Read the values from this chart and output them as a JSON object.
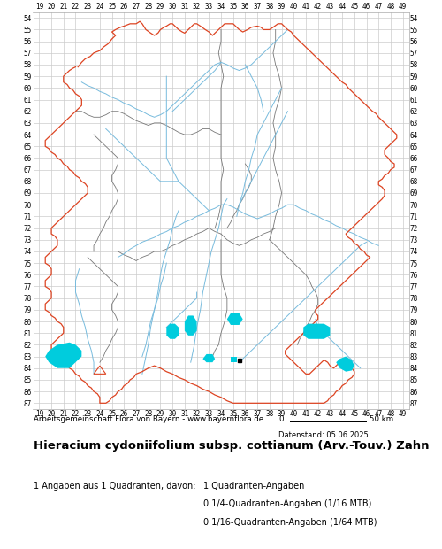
{
  "title": "Hieracium cydoniifolium subsp. cottianum (Arv.-Touv.) Zahn",
  "subtitle": "Arbeitsgemeinschaft Flora von Bayern - www.bayernflora.de",
  "date_label": "Datenstand: 05.06.2025",
  "scale_label": "50 km",
  "scale_zero": "0",
  "stats_line1": "1 Angaben aus 1 Quadranten, davon:",
  "stats_col2_line1": "1 Quadranten-Angaben",
  "stats_col2_line2": "0 1/4-Quadranten-Angaben (1/16 MTB)",
  "stats_col2_line3": "0 1/16-Quadranten-Angaben (1/64 MTB)",
  "x_ticks": [
    19,
    20,
    21,
    22,
    23,
    24,
    25,
    26,
    27,
    28,
    29,
    30,
    31,
    32,
    33,
    34,
    35,
    36,
    37,
    38,
    39,
    40,
    41,
    42,
    43,
    44,
    45,
    46,
    47,
    48,
    49
  ],
  "y_ticks": [
    54,
    55,
    56,
    57,
    58,
    59,
    60,
    61,
    62,
    63,
    64,
    65,
    66,
    67,
    68,
    69,
    70,
    71,
    72,
    73,
    74,
    75,
    76,
    77,
    78,
    79,
    80,
    81,
    82,
    83,
    84,
    85,
    86,
    87
  ],
  "x_min": 19,
  "x_max": 49,
  "y_min": 54,
  "y_max": 87,
  "grid_color": "#cccccc",
  "bg_color": "#ffffff",
  "fig_width": 5.0,
  "fig_height": 6.2,
  "border_color_outer": "#dd4422",
  "border_color_inner": "#777777",
  "river_color": "#77bbdd",
  "lake_color": "#00ccdd",
  "data_point_x": 35.5,
  "data_point_y": 83.3,
  "tick_fontsize": 5.5,
  "title_fontsize": 9.5
}
